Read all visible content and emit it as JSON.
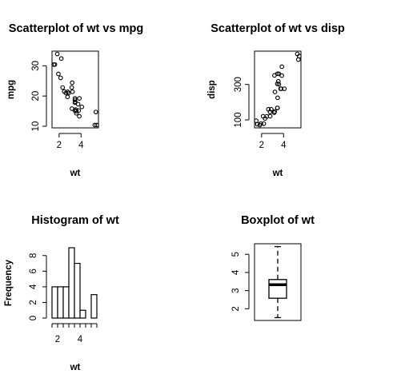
{
  "chart_data": [
    {
      "type": "scatter",
      "title": "Scatterplot of wt vs mpg",
      "xlabel": "wt",
      "ylabel": "mpg",
      "xlim": [
        1.513,
        5.424
      ],
      "ylim": [
        10.4,
        33.9
      ],
      "xticks": [
        2,
        4
      ],
      "yticks": [
        10,
        20,
        30
      ],
      "x": [
        2.62,
        2.875,
        2.32,
        3.215,
        3.44,
        3.46,
        3.57,
        3.19,
        3.15,
        3.44,
        3.44,
        4.07,
        3.73,
        3.78,
        5.25,
        5.424,
        5.345,
        2.2,
        1.615,
        1.835,
        2.465,
        3.52,
        3.435,
        3.84,
        3.845,
        1.935,
        2.14,
        1.513,
        3.17,
        2.77,
        3.57,
        2.78
      ],
      "y": [
        21.0,
        21.0,
        22.8,
        21.4,
        18.7,
        18.1,
        14.3,
        24.4,
        22.8,
        19.2,
        17.8,
        16.4,
        17.3,
        15.2,
        10.4,
        10.4,
        14.7,
        32.4,
        30.4,
        33.9,
        21.5,
        15.5,
        15.2,
        13.3,
        19.2,
        27.3,
        26.0,
        30.4,
        15.8,
        19.7,
        15.0,
        21.4
      ]
    },
    {
      "type": "scatter",
      "title": "Scatterplot of wt vs disp",
      "xlabel": "wt",
      "ylabel": "disp",
      "xlim": [
        1.513,
        5.424
      ],
      "ylim": [
        71.1,
        472.0
      ],
      "xticks": [
        2,
        4
      ],
      "yticks": [
        100,
        300
      ],
      "x": [
        2.62,
        2.875,
        2.32,
        3.215,
        3.44,
        3.46,
        3.57,
        3.19,
        3.15,
        3.44,
        3.44,
        4.07,
        3.73,
        3.78,
        5.25,
        5.424,
        5.345,
        2.2,
        1.615,
        1.835,
        2.465,
        3.52,
        3.435,
        3.84,
        3.845,
        1.935,
        2.14,
        1.513,
        3.17,
        2.77,
        3.57,
        2.78
      ],
      "y": [
        160.0,
        160.0,
        108.0,
        258.0,
        360.0,
        225.0,
        360.0,
        146.7,
        140.8,
        167.6,
        167.6,
        275.8,
        275.8,
        275.8,
        472.0,
        460.0,
        440.0,
        78.7,
        75.7,
        71.1,
        120.1,
        318.0,
        304.0,
        350.0,
        400.0,
        79.0,
        120.3,
        95.1,
        351.0,
        145.0,
        301.0,
        121.0
      ]
    },
    {
      "type": "bar",
      "subtype": "histogram",
      "title": "Histogram of wt",
      "xlabel": "wt",
      "ylabel": "Frequency",
      "bin_edges": [
        1.5,
        2.0,
        2.5,
        3.0,
        3.5,
        4.0,
        4.5,
        5.0,
        5.5
      ],
      "values": [
        4,
        4,
        4,
        9,
        7,
        1,
        0,
        3
      ],
      "xticks": [
        2,
        4
      ],
      "yticks": [
        0,
        2,
        4,
        6,
        8
      ],
      "ylim": [
        0,
        9
      ]
    },
    {
      "type": "boxplot",
      "title": "Boxplot of wt",
      "xlabel": "",
      "ylabel": "",
      "stats": {
        "lower_whisker": 1.513,
        "q1": 2.581,
        "median": 3.325,
        "q3": 3.61,
        "upper_whisker": 5.424
      },
      "outliers": [],
      "ylim": [
        1.513,
        5.424
      ],
      "yticks": [
        2,
        3,
        4,
        5
      ]
    }
  ]
}
